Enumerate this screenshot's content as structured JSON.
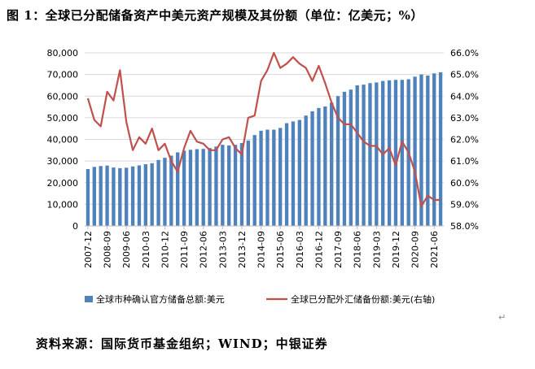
{
  "title": "图 1：全球已分配储备资产中美元资产规模及其份额（单位：亿美元；%）",
  "source": "资料来源：国际货币基金组织；WIND；中银证券",
  "return_mark": "↵",
  "colors": {
    "bar": "#4F81BD",
    "line": "#C0504D",
    "axis": "#BFBFBF"
  },
  "chart_data": {
    "type": "bar",
    "title": "图 1：全球已分配储备资产中美元资产规模及其份额（单位：亿美元；%）",
    "categories": [
      "2007-12",
      "2008-03",
      "2008-06",
      "2008-09",
      "2008-12",
      "2009-03",
      "2009-06",
      "2009-09",
      "2009-12",
      "2010-03",
      "2010-06",
      "2010-09",
      "2010-12",
      "2011-03",
      "2011-06",
      "2011-09",
      "2011-12",
      "2012-03",
      "2012-06",
      "2012-09",
      "2012-12",
      "2013-03",
      "2013-06",
      "2013-09",
      "2013-12",
      "2014-03",
      "2014-06",
      "2014-09",
      "2014-12",
      "2015-03",
      "2015-06",
      "2015-09",
      "2015-12",
      "2016-03",
      "2016-06",
      "2016-09",
      "2016-12",
      "2017-03",
      "2017-06",
      "2017-09",
      "2017-12",
      "2018-03",
      "2018-06",
      "2018-09",
      "2018-12",
      "2019-03",
      "2019-06",
      "2019-09",
      "2019-12",
      "2020-03",
      "2020-06",
      "2020-09",
      "2020-12",
      "2021-03",
      "2021-06",
      "2021-09"
    ],
    "x_tick_labels": [
      "2007-12",
      "2008-09",
      "2009-06",
      "2010-03",
      "2010-12",
      "2011-09",
      "2012-06",
      "2013-03",
      "2013-12",
      "2014-09",
      "2015-06",
      "2016-03",
      "2016-12",
      "2017-09",
      "2018-06",
      "2019-03",
      "2019-12",
      "2020-09",
      "2021-06"
    ],
    "y_left": {
      "ticks": [
        "0",
        "10,000",
        "20,000",
        "30,000",
        "40,000",
        "50,000",
        "60,000",
        "70,000",
        "80,000"
      ],
      "ylim": [
        0,
        80000
      ]
    },
    "y_right": {
      "ticks": [
        "58.0%",
        "59.0%",
        "60.0%",
        "61.0%",
        "62.0%",
        "63.0%",
        "64.0%",
        "65.0%",
        "66.0%"
      ],
      "ylim": [
        58,
        66
      ]
    },
    "series": [
      {
        "name": "全球市种确认官方储备总额:美元",
        "type": "bar",
        "axis": "left",
        "values": [
          26300,
          27300,
          27700,
          27900,
          27000,
          26700,
          26900,
          27500,
          28000,
          28500,
          29000,
          30500,
          31500,
          32500,
          34000,
          34800,
          35200,
          35500,
          35600,
          36000,
          36700,
          37500,
          37200,
          37500,
          38300,
          39500,
          42000,
          44000,
          44500,
          44500,
          45300,
          47500,
          48300,
          49000,
          51000,
          53000,
          54500,
          55200,
          57000,
          60000,
          62000,
          63000,
          65000,
          65300,
          66000,
          66300,
          67000,
          67300,
          67500,
          67500,
          67800,
          69000,
          70000,
          69500,
          70500,
          71000
        ]
      },
      {
        "name": "全球已分配外汇储备份额:美元(右轴)",
        "type": "line",
        "axis": "right",
        "values": [
          63.9,
          62.9,
          62.6,
          64.2,
          63.8,
          65.2,
          62.8,
          61.5,
          62.1,
          61.8,
          62.5,
          61.5,
          61.8,
          61.0,
          60.5,
          61.6,
          62.4,
          61.9,
          61.8,
          61.5,
          61.5,
          62.0,
          62.1,
          61.6,
          61.3,
          63.0,
          63.1,
          64.7,
          65.2,
          66.0,
          65.3,
          65.5,
          65.8,
          65.5,
          65.3,
          64.7,
          65.4,
          64.6,
          63.7,
          63.0,
          62.7,
          62.7,
          62.3,
          61.9,
          61.7,
          61.7,
          61.3,
          61.6,
          60.8,
          61.9,
          61.4,
          60.5,
          58.9,
          59.4,
          59.2,
          59.2
        ]
      }
    ],
    "legend_position": "bottom",
    "grid": "horizontal"
  }
}
